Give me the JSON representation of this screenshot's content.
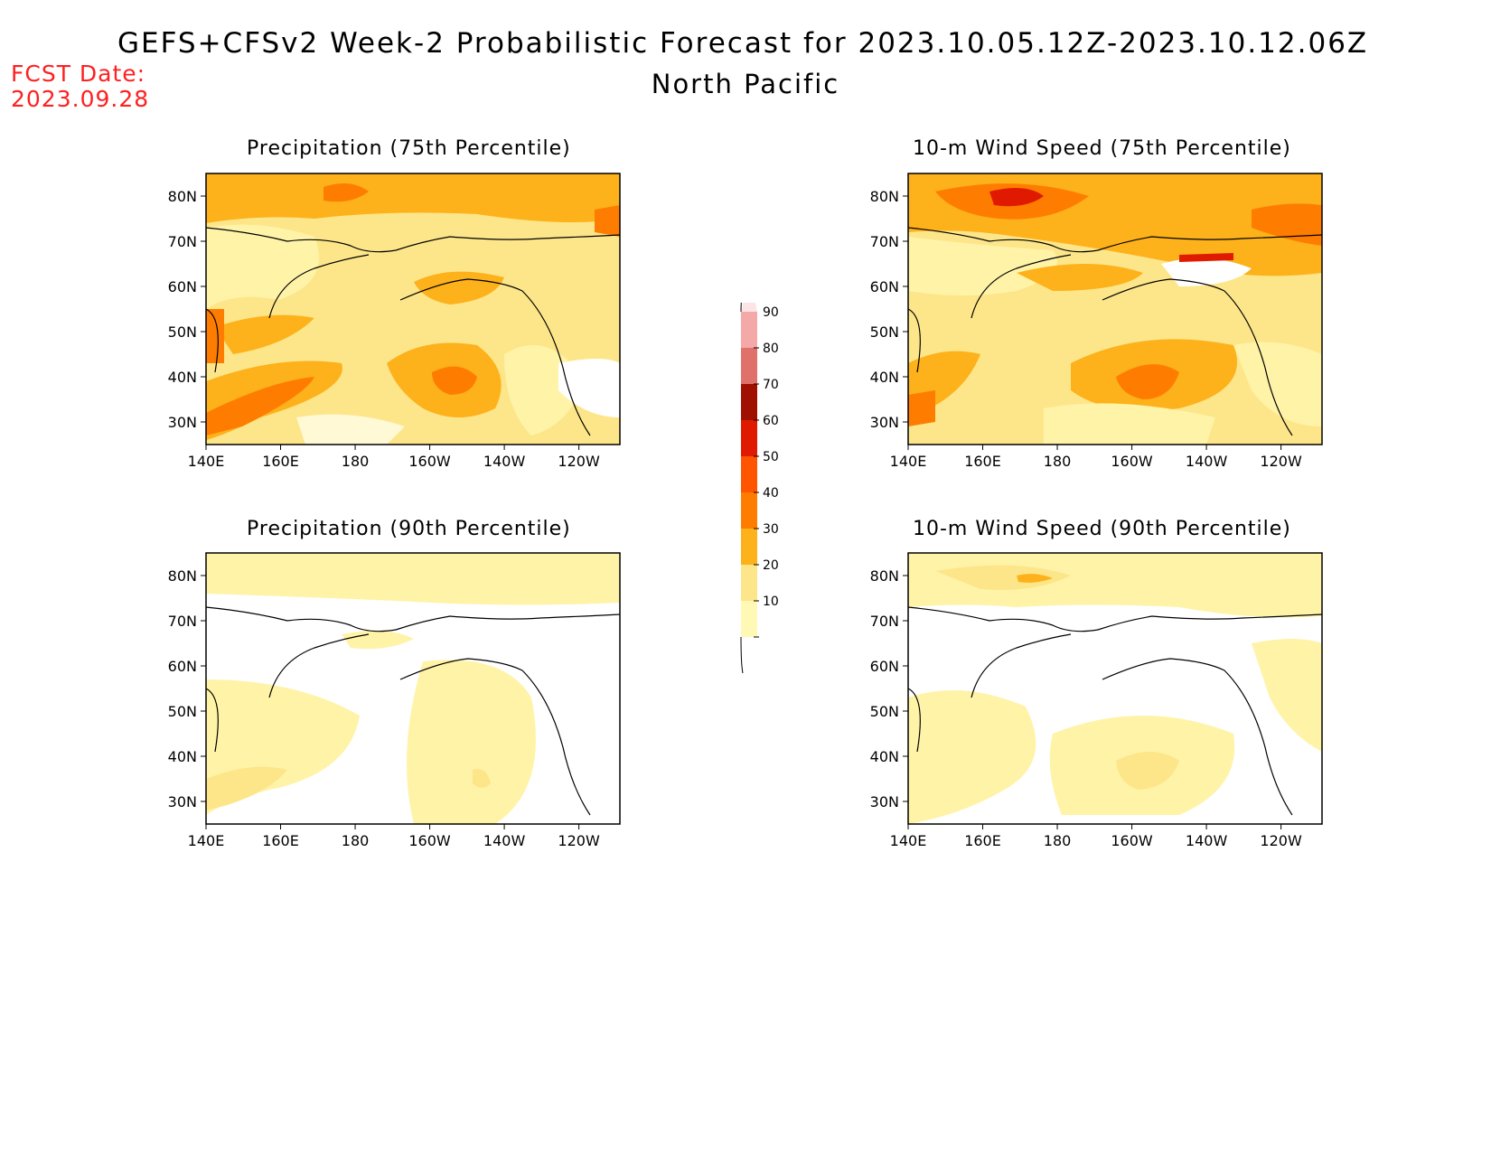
{
  "header": {
    "title": "GEFS+CFSv2 Week-2 Probabilistic Forecast for 2023.10.05.12Z-2023.10.12.06Z",
    "region": "North Pacific",
    "fcst_label": "FCST Date:",
    "fcst_date": "2023.09.28"
  },
  "panels": [
    {
      "title": "Precipitation (75th Percentile)"
    },
    {
      "title": "10-m Wind Speed (75th Percentile)"
    },
    {
      "title": "Precipitation (90th Percentile)"
    },
    {
      "title": "10-m Wind Speed (90th Percentile)"
    }
  ],
  "axes": {
    "x_ticks": [
      "140E",
      "160E",
      "180",
      "160W",
      "140W",
      "120W"
    ],
    "y_ticks": [
      "80N",
      "70N",
      "60N",
      "50N",
      "40N",
      "30N"
    ]
  },
  "colorbar": {
    "levels": [
      "10",
      "20",
      "30",
      "40",
      "50",
      "60",
      "70",
      "80",
      "90"
    ],
    "colors": [
      "#fff9b5",
      "#fde68a",
      "#fdb11a",
      "#fe7d00",
      "#ff5400",
      "#e01a00",
      "#a01000",
      "#e0706a",
      "#f4a8a8",
      "#fde4e4"
    ]
  }
}
